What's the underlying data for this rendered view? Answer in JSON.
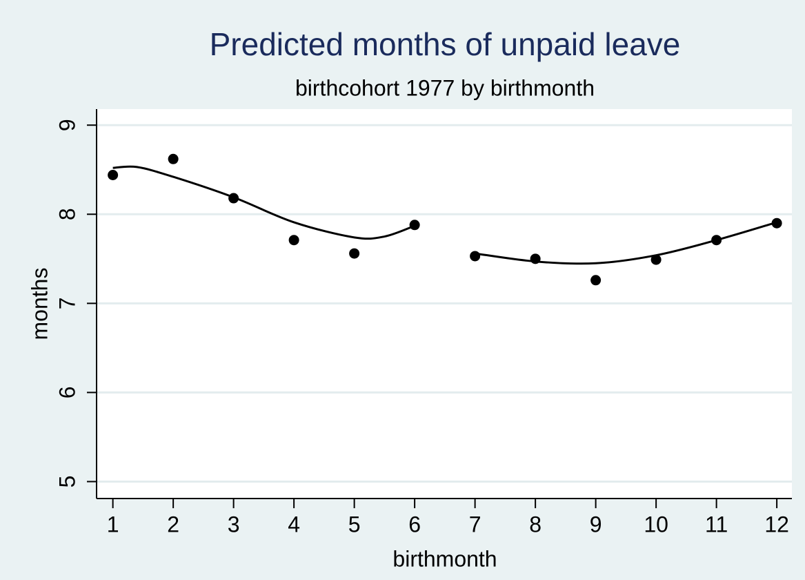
{
  "chart_data": {
    "type": "scatter",
    "title": "Predicted months of unpaid leave",
    "subtitle": "birthcohort 1977 by birthmonth",
    "x_label": "birthmonth",
    "y_label": "months",
    "xlim": [
      0.73,
      12.25
    ],
    "ylim": [
      4.81,
      9.18
    ],
    "xticks": [
      1,
      2,
      3,
      4,
      5,
      6,
      7,
      8,
      9,
      10,
      11,
      12
    ],
    "yticks": [
      5,
      6,
      7,
      8,
      9
    ],
    "grid": true,
    "series": [
      {
        "mode": "markers",
        "color": "#000000",
        "x": [
          1,
          2,
          3,
          4,
          5,
          6,
          7,
          8,
          9,
          10,
          11,
          12
        ],
        "values": [
          8.44,
          8.62,
          8.18,
          7.71,
          7.56,
          7.88,
          7.53,
          7.5,
          7.26,
          7.49,
          7.71,
          7.9
        ]
      },
      {
        "mode": "line",
        "color": "#000000",
        "x": [
          1,
          1.4,
          2,
          3,
          4,
          5,
          5.5,
          6
        ],
        "values": [
          8.52,
          8.53,
          8.42,
          8.19,
          7.91,
          7.74,
          7.75,
          7.87
        ]
      },
      {
        "mode": "line",
        "color": "#000000",
        "x": [
          7,
          8,
          9,
          10,
          11,
          12
        ],
        "values": [
          7.56,
          7.47,
          7.45,
          7.54,
          7.71,
          7.91
        ]
      }
    ]
  }
}
